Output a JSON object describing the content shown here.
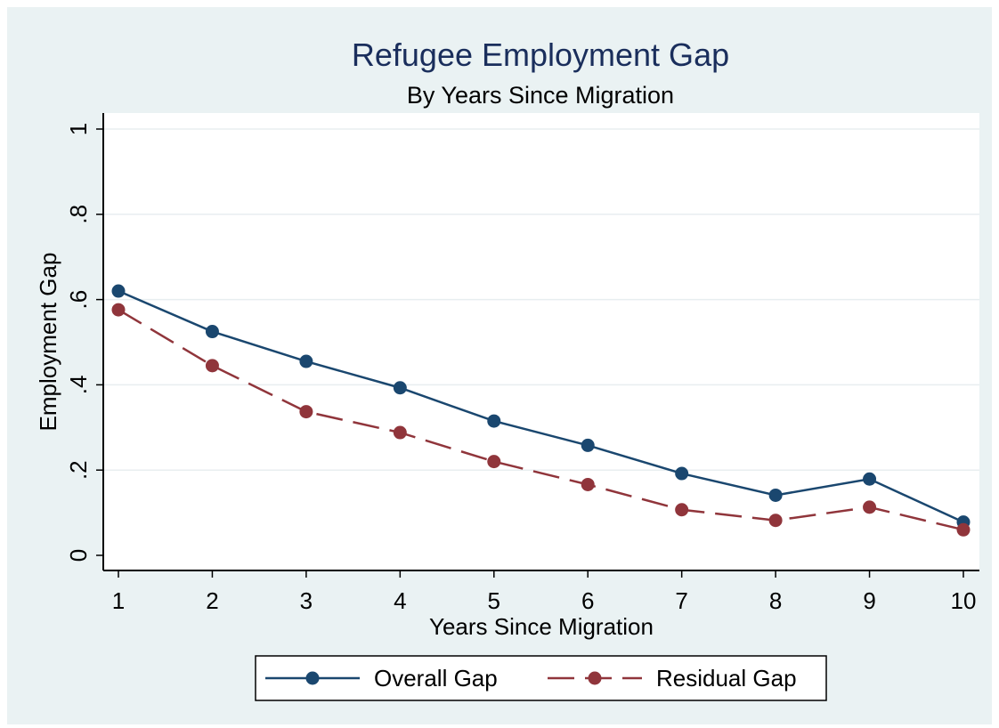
{
  "chart_data": {
    "type": "line",
    "title": "Refugee Employment Gap",
    "subtitle": "By Years Since Migration",
    "xlabel": "Years Since Migration",
    "ylabel": "Employment Gap",
    "x": [
      1,
      2,
      3,
      4,
      5,
      6,
      7,
      8,
      9,
      10
    ],
    "xticks": [
      1,
      2,
      3,
      4,
      5,
      6,
      7,
      8,
      9,
      10
    ],
    "yticks": [
      0,
      0.2,
      0.4,
      0.6,
      0.8,
      1
    ],
    "ytick_labels": [
      "0",
      ".2",
      ".4",
      ".6",
      ".8",
      "1"
    ],
    "xlim": [
      1,
      10
    ],
    "ylim": [
      0,
      1
    ],
    "grid": "horizontal",
    "legend_position": "bottom",
    "series": [
      {
        "name": "Overall Gap",
        "color": "#1a476f",
        "dash": "solid",
        "values": [
          0.62,
          0.525,
          0.455,
          0.393,
          0.315,
          0.258,
          0.192,
          0.141,
          0.179,
          0.078
        ]
      },
      {
        "name": "Residual Gap",
        "color": "#90353b",
        "dash": "dashed",
        "values": [
          0.576,
          0.445,
          0.337,
          0.288,
          0.22,
          0.166,
          0.107,
          0.082,
          0.113,
          0.06
        ]
      }
    ]
  }
}
